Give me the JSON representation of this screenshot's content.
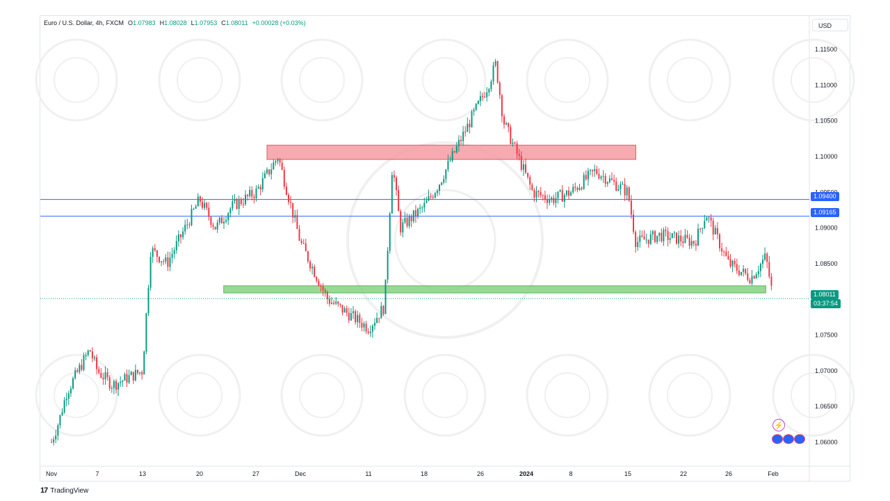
{
  "header": {
    "title": "Euro / U.S. Dollar, 4h, FXCM",
    "ohlc": [
      {
        "label": "O",
        "value": "1.07983"
      },
      {
        "label": "H",
        "value": "1.08028"
      },
      {
        "label": "L",
        "value": "1.07953"
      },
      {
        "label": "C",
        "value": "1.08011"
      }
    ],
    "change": "+0.00028 (+0.03%)"
  },
  "currency": "USD",
  "branding": "TradingView",
  "price_tags": {
    "level_upper": "1.09400",
    "level_lower": "1.09165",
    "last_price": "1.08011",
    "countdown": "03:37:54"
  },
  "colors": {
    "up": "#089981",
    "down": "#f23645",
    "level_line": "#2962ff",
    "resistance_zone": "#f7a1a8",
    "support_zone": "#8fd48a"
  },
  "chart_data": {
    "type": "candlestick",
    "symbol": "EURUSD",
    "timeframe": "4h",
    "ylim": [
      1.059,
      1.1155
    ],
    "y_ticks": [
      "1.11500",
      "1.11000",
      "1.10500",
      "1.10000",
      "1.09500",
      "1.09000",
      "1.08500",
      "1.07500",
      "1.07000",
      "1.06500",
      "1.06000"
    ],
    "x_ticks": [
      "Nov",
      "7",
      "13",
      "20",
      "27",
      "Dec",
      "11",
      "18",
      "26",
      "2024",
      "8",
      "15",
      "22",
      "26",
      "Feb"
    ],
    "horizontal_levels": [
      1.094,
      1.09165
    ],
    "last_price": 1.08011,
    "zones": [
      {
        "kind": "resistance",
        "y_from": 1.0996,
        "y_to": 1.1016,
        "from": "28 Nov",
        "to": "16 Jan"
      },
      {
        "kind": "support",
        "y_from": 1.0809,
        "y_to": 1.0819,
        "from": "23 Nov",
        "to": "31 Jan"
      }
    ],
    "close_path": [
      {
        "x": "1 Nov",
        "close": 1.06
      },
      {
        "x": "2 Nov",
        "close": 1.063
      },
      {
        "x": "3 Nov",
        "close": 1.067
      },
      {
        "x": "6 Nov",
        "close": 1.073
      },
      {
        "x": "7 Nov",
        "close": 1.07
      },
      {
        "x": "9 Nov",
        "close": 1.068
      },
      {
        "x": "13 Nov",
        "close": 1.07
      },
      {
        "x": "14 Nov",
        "close": 1.087
      },
      {
        "x": "16 Nov",
        "close": 1.085
      },
      {
        "x": "20 Nov",
        "close": 1.094
      },
      {
        "x": "22 Nov",
        "close": 1.09
      },
      {
        "x": "24 Nov",
        "close": 1.093
      },
      {
        "x": "27 Nov",
        "close": 1.095
      },
      {
        "x": "29 Nov",
        "close": 1.1
      },
      {
        "x": "1 Dec",
        "close": 1.088
      },
      {
        "x": "5 Dec",
        "close": 1.08
      },
      {
        "x": "8 Dec",
        "close": 1.078
      },
      {
        "x": "11 Dec",
        "close": 1.076
      },
      {
        "x": "13 Dec",
        "close": 1.079
      },
      {
        "x": "14 Dec",
        "close": 1.099
      },
      {
        "x": "15 Dec",
        "close": 1.09
      },
      {
        "x": "18 Dec",
        "close": 1.093
      },
      {
        "x": "20 Dec",
        "close": 1.096
      },
      {
        "x": "22 Dec",
        "close": 1.1
      },
      {
        "x": "27 Dec",
        "close": 1.11
      },
      {
        "x": "28 Dec",
        "close": 1.113
      },
      {
        "x": "29 Dec",
        "close": 1.105
      },
      {
        "x": "2 Jan",
        "close": 1.095
      },
      {
        "x": "5 Jan",
        "close": 1.094
      },
      {
        "x": "8 Jan",
        "close": 1.095
      },
      {
        "x": "11 Jan",
        "close": 1.098
      },
      {
        "x": "15 Jan",
        "close": 1.095
      },
      {
        "x": "16 Jan",
        "close": 1.088
      },
      {
        "x": "19 Jan",
        "close": 1.089
      },
      {
        "x": "23 Jan",
        "close": 1.088
      },
      {
        "x": "24 Jan",
        "close": 1.092
      },
      {
        "x": "26 Jan",
        "close": 1.085
      },
      {
        "x": "29 Jan",
        "close": 1.083
      },
      {
        "x": "31 Jan",
        "close": 1.086
      },
      {
        "x": "1 Feb",
        "close": 1.0801
      }
    ]
  }
}
